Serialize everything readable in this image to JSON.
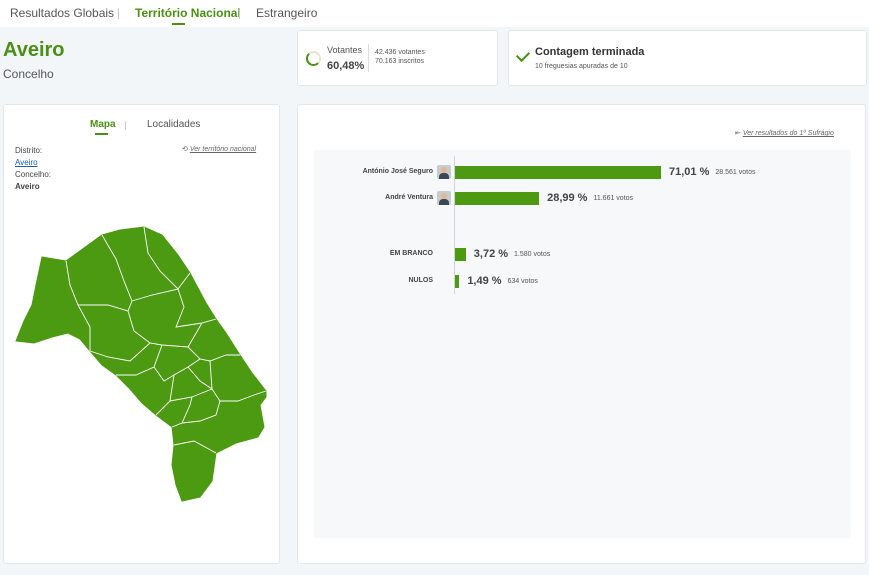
{
  "nav": {
    "tabs": [
      {
        "label": "Resultados Globais"
      },
      {
        "label": "Território Nacional"
      },
      {
        "label": "Estrangeiro"
      }
    ],
    "active_tab": "Território Nacional"
  },
  "header": {
    "title": "Aveiro",
    "subtitle": "Concelho"
  },
  "votantes": {
    "label": "Votantes",
    "percent": "60,48%",
    "percent_value": 60.48,
    "votantes_text": "42.436 votantes",
    "inscritos_text": "70.163 inscritos"
  },
  "contagem": {
    "title": "Contagem terminada",
    "detail": "10 freguesias apuradas de 10"
  },
  "map_panel": {
    "tabs": [
      {
        "label": "Mapa"
      },
      {
        "label": "Localidades"
      }
    ],
    "ver_territorio": "Ver território nacional",
    "distrito_label": "Distrito:",
    "distrito_value": "Aveiro",
    "concelho_label": "Concelho:",
    "concelho_value": "Aveiro",
    "map_color": "#4b9a12",
    "icons": {
      "back": "history-back-icon"
    }
  },
  "results": {
    "ver_primeiro": "Ver resultados do 1º Sufrágio",
    "bar_color": "#4b9a12",
    "rows": [
      {
        "name": "António José Seguro",
        "percent_label": "71,01 %",
        "percent": 71.01,
        "votes": "28.561 votos",
        "has_avatar": true
      },
      {
        "name": "André Ventura",
        "percent_label": "28,99 %",
        "percent": 28.99,
        "votes": "11.661 votos",
        "has_avatar": true
      },
      {
        "name": "EM BRANCO",
        "percent_label": "3,72 %",
        "percent": 3.72,
        "votes": "1.580 votos",
        "has_avatar": false
      },
      {
        "name": "NULOS",
        "percent_label": "1,49 %",
        "percent": 1.49,
        "votes": "634 votos",
        "has_avatar": false
      }
    ]
  }
}
